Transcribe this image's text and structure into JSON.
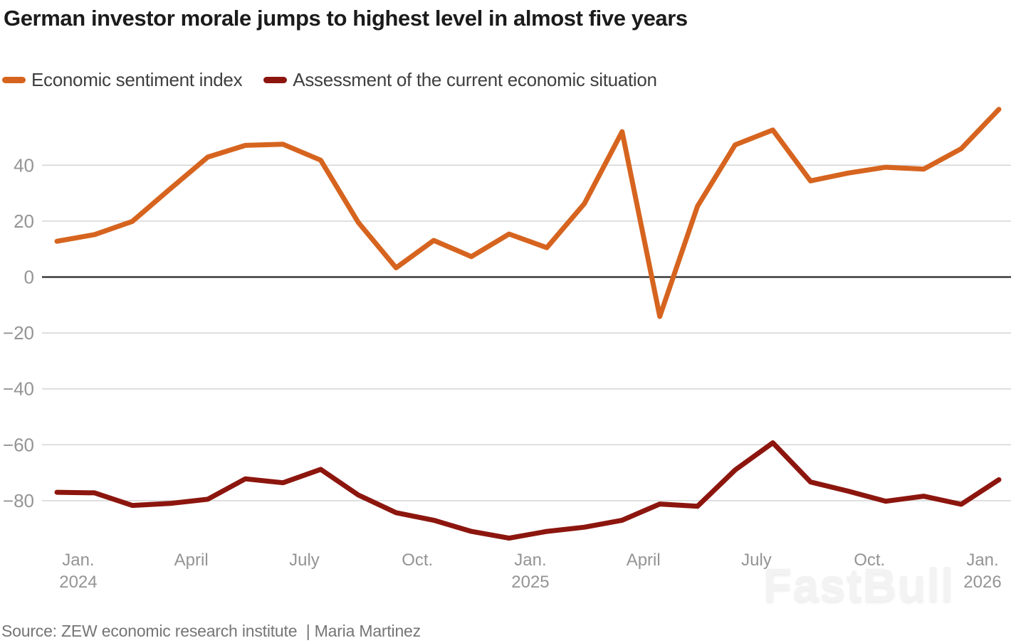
{
  "title": "German investor morale jumps to highest level in almost five years",
  "legend": [
    {
      "label": "Economic sentiment index",
      "color": "#d6641f"
    },
    {
      "label": "Assessment of the current economic situation",
      "color": "#8c160e"
    }
  ],
  "source": "Source: ZEW economic research institute  | Maria Martinez",
  "watermark": "FastBull",
  "colors": {
    "series_sentiment": "#d6641f",
    "series_situation": "#8c160e",
    "gridline": "#d4d4d4",
    "zero_line": "#3a3a3a",
    "axis_label": "#949494",
    "title_text": "#1b1b1b",
    "legend_text": "#3f3f3f",
    "source_text": "#757575",
    "watermark_text": "#f3f3f3",
    "background": "#ffffff"
  },
  "chart_data": {
    "type": "line",
    "title": "German investor morale jumps to highest level in almost five years",
    "x_unit": "month",
    "categories": [
      "Dec 2023",
      "Jan 2024",
      "Feb 2024",
      "Mar 2024",
      "Apr 2024",
      "May 2024",
      "Jun 2024",
      "Jul 2024",
      "Aug 2024",
      "Sep 2024",
      "Oct 2024",
      "Nov 2024",
      "Dec 2024",
      "Jan 2025",
      "Feb 2025",
      "Mar 2025",
      "Apr 2025",
      "May 2025",
      "Jun 2025",
      "Jul 2025",
      "Aug 2025",
      "Sep 2025",
      "Oct 2025",
      "Nov 2025",
      "Dec 2025",
      "Jan 2026"
    ],
    "series": [
      {
        "name": "Economic sentiment index",
        "color": "#d6641f",
        "values": [
          12.8,
          15.2,
          19.9,
          31.5,
          42.9,
          47.1,
          47.5,
          41.8,
          19.5,
          3.3,
          13.1,
          7.3,
          15.4,
          10.5,
          26.3,
          52.0,
          -14.1,
          25.3,
          47.3,
          52.6,
          34.4,
          37.2,
          39.3,
          38.6,
          45.9,
          60.0
        ]
      },
      {
        "name": "Assessment of the current economic situation",
        "color": "#8c160e",
        "values": [
          -77.0,
          -77.2,
          -81.7,
          -81.0,
          -79.5,
          -72.2,
          -73.6,
          -68.8,
          -78.0,
          -84.3,
          -87.0,
          -91.0,
          -93.4,
          -91.0,
          -89.5,
          -87.0,
          -81.2,
          -82.0,
          -69.0,
          -59.3,
          -73.3,
          -76.6,
          -80.2,
          -78.4,
          -81.3,
          -72.5
        ]
      }
    ],
    "yticks": [
      40,
      20,
      0,
      -20,
      -40,
      -60,
      -80
    ],
    "ylim": [
      -97,
      62
    ],
    "x_ticks": [
      {
        "line1": "Jan.",
        "line2": "2024",
        "month_index": 1
      },
      {
        "line1": "April",
        "line2": "",
        "month_index": 4
      },
      {
        "line1": "July",
        "line2": "",
        "month_index": 7
      },
      {
        "line1": "Oct.",
        "line2": "",
        "month_index": 10
      },
      {
        "line1": "Jan.",
        "line2": "2025",
        "month_index": 13
      },
      {
        "line1": "April",
        "line2": "",
        "month_index": 16
      },
      {
        "line1": "July",
        "line2": "",
        "month_index": 19
      },
      {
        "line1": "Oct.",
        "line2": "",
        "month_index": 22
      },
      {
        "line1": "Jan.",
        "line2": "2026",
        "month_index": 25
      }
    ],
    "grid": "horizontal",
    "zero_line": true,
    "legend_position": "top"
  }
}
